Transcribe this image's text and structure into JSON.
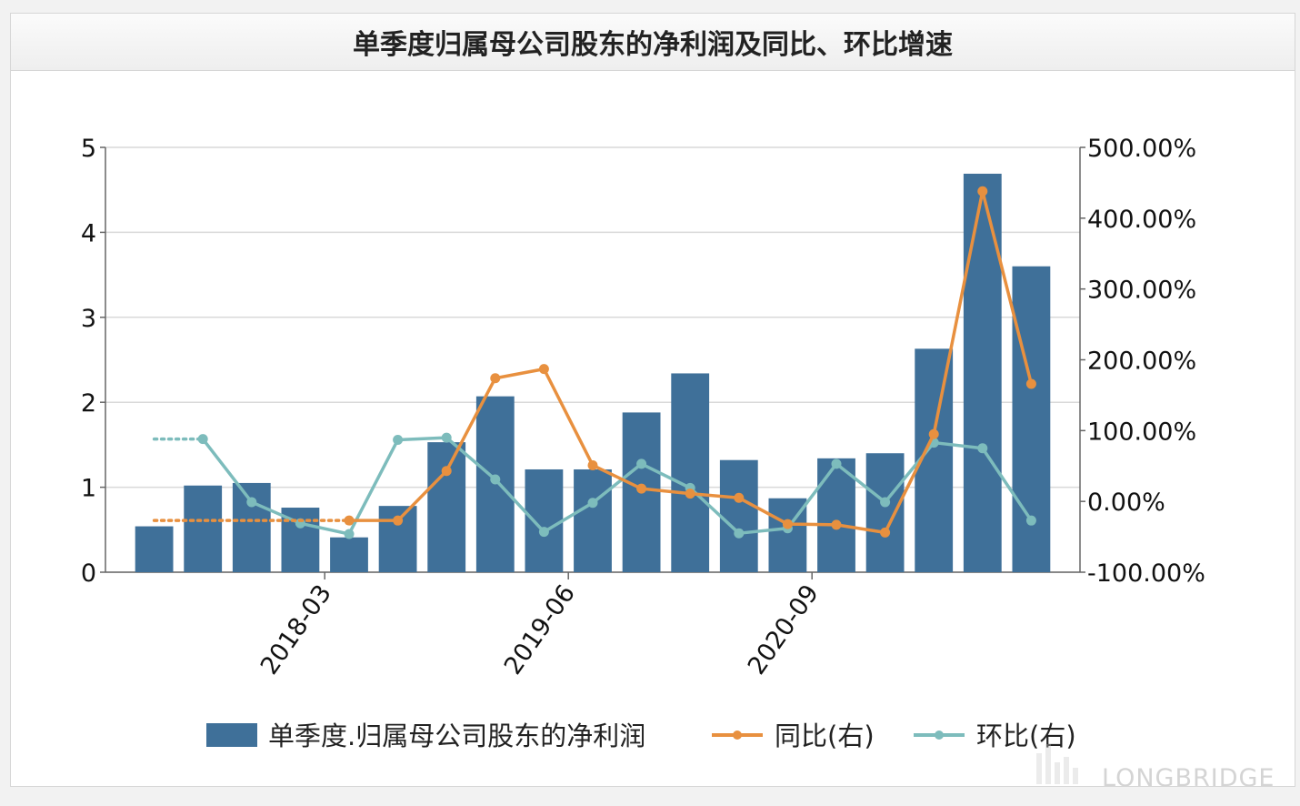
{
  "chart_data": {
    "type": "bar+line",
    "title": "单季度归属母公司股东的净利润及同比、环比增速",
    "left_axis": {
      "ylim": [
        0,
        5
      ],
      "ticks": [
        "0",
        "1",
        "2",
        "3",
        "4",
        "5"
      ]
    },
    "right_axis": {
      "ylim": [
        -100,
        500
      ],
      "ticks": [
        "-100.00%",
        "0.00%",
        "100.00%",
        "200.00%",
        "300.00%",
        "400.00%",
        "500.00%"
      ]
    },
    "x_tick_labels": [
      "2018-03",
      "2019-06",
      "2020-09"
    ],
    "series": [
      {
        "name": "单季度.归属母公司股东的净利润",
        "type": "bar",
        "color": "#3f7099",
        "values": [
          0.54,
          1.02,
          1.05,
          0.76,
          0.41,
          0.78,
          1.53,
          2.07,
          1.21,
          1.21,
          1.88,
          2.34,
          1.32,
          0.87,
          1.34,
          1.4,
          2.63,
          4.69,
          3.6
        ]
      },
      {
        "name": "同比(右)",
        "type": "line",
        "color": "#e8903f",
        "values": [
          null,
          null,
          null,
          null,
          -27,
          -27,
          43,
          174,
          187,
          51,
          18,
          11,
          5,
          -32,
          -33,
          -44,
          95,
          438,
          166
        ],
        "lead_in_dotted": -27
      },
      {
        "name": "环比(右)",
        "type": "line",
        "color": "#7dbcbc",
        "values": [
          null,
          88,
          -1,
          -31,
          -46,
          87,
          90,
          31,
          -43,
          -2,
          53,
          19,
          -45,
          -38,
          53,
          -1,
          83,
          75,
          -27
        ],
        "lead_in_dotted": 88
      }
    ],
    "legend": {
      "position": "bottom"
    },
    "watermark": "LONGBRIDGE"
  }
}
